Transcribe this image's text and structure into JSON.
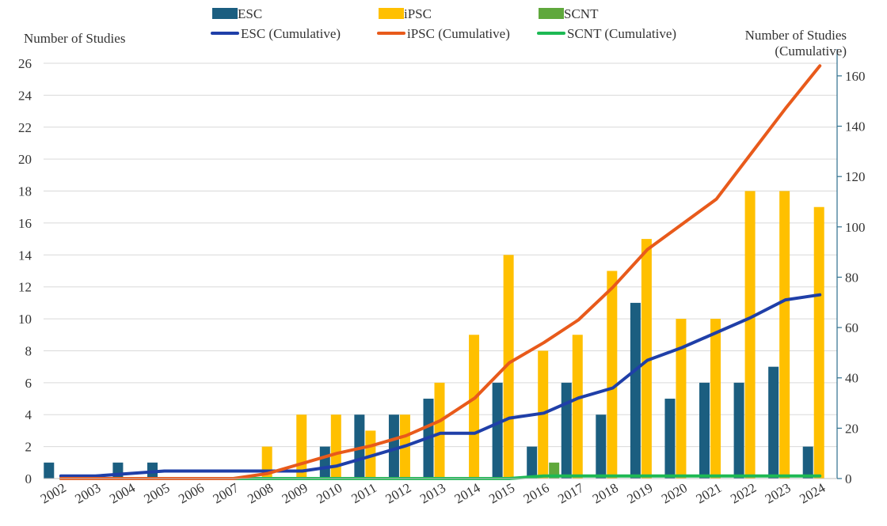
{
  "chart_data": {
    "type": "bar",
    "categories": [
      "2002",
      "2003",
      "2004",
      "2005",
      "2006",
      "2007",
      "2008",
      "2009",
      "2010",
      "2011",
      "2012",
      "2013",
      "2014",
      "2015",
      "2016",
      "2017",
      "2018",
      "2019",
      "2020",
      "2021",
      "2022",
      "2023",
      "2024"
    ],
    "bar_series": [
      {
        "name": "ESC",
        "color": "#1b5e80",
        "values": [
          1,
          0,
          1,
          1,
          0,
          0,
          0,
          0,
          2,
          4,
          4,
          5,
          0,
          6,
          2,
          6,
          4,
          11,
          5,
          6,
          6,
          7,
          2
        ]
      },
      {
        "name": "iPSC",
        "color": "#ffc000",
        "values": [
          0,
          0,
          0,
          0,
          0,
          0,
          2,
          4,
          4,
          3,
          4,
          6,
          9,
          14,
          8,
          9,
          13,
          15,
          10,
          10,
          18,
          18,
          17
        ]
      },
      {
        "name": "SCNT",
        "color": "#5fa83c",
        "values": [
          0,
          0,
          0,
          0,
          0,
          0,
          0,
          0,
          0,
          0,
          0,
          0,
          0,
          0,
          1,
          0,
          0,
          0,
          0,
          0,
          0,
          0,
          0
        ]
      }
    ],
    "line_series": [
      {
        "name": "ESC (Cumulative)",
        "color": "#1f3fa8",
        "values": [
          1,
          1,
          2,
          3,
          3,
          3,
          3,
          3,
          5,
          9,
          13,
          18,
          18,
          24,
          26,
          32,
          36,
          47,
          52,
          58,
          64,
          71,
          73
        ]
      },
      {
        "name": "iPSC (Cumulative)",
        "color": "#e85a1b",
        "values": [
          0,
          0,
          0,
          0,
          0,
          0,
          2,
          6,
          10,
          13,
          17,
          23,
          32,
          46,
          54,
          63,
          76,
          91,
          101,
          111,
          129,
          147,
          164
        ]
      },
      {
        "name": "SCNT (Cumulative)",
        "color": "#1db954",
        "values": [
          0,
          0,
          0,
          0,
          0,
          0,
          0,
          0,
          0,
          0,
          0,
          0,
          0,
          0,
          1,
          1,
          1,
          1,
          1,
          1,
          1,
          1,
          1
        ]
      }
    ],
    "y_left": {
      "label": "Number of Studies",
      "range": [
        0,
        26
      ],
      "ticks": [
        "0",
        "2",
        "4",
        "6",
        "8",
        "10",
        "12",
        "14",
        "16",
        "18",
        "20",
        "22",
        "24",
        "26"
      ]
    },
    "y_right": {
      "label_line1": "Number of Studies",
      "label_line2": "(Cumulative)",
      "range": [
        0,
        165
      ],
      "ticks": [
        "0",
        "20",
        "40",
        "60",
        "80",
        "100",
        "120",
        "140",
        "160"
      ]
    },
    "grid": true,
    "legend_position": "top"
  }
}
